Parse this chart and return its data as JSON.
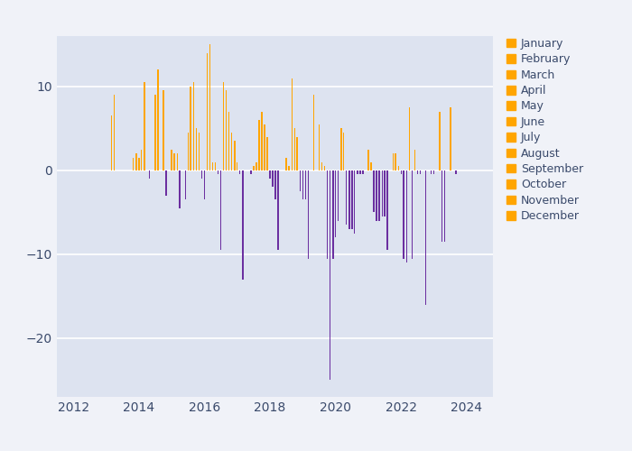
{
  "fig_background": "#f0f2f8",
  "plot_background": "#dde3f0",
  "bar_width": 0.04,
  "xlim": [
    2011.5,
    2024.8
  ],
  "ylim": [
    -27,
    16
  ],
  "yticks": [
    -20,
    -10,
    0,
    10
  ],
  "xticks": [
    2012,
    2014,
    2016,
    2018,
    2020,
    2022,
    2024
  ],
  "orange_color": "#FFA500",
  "purple_color": "#6B2FA0",
  "months": [
    "January",
    "February",
    "March",
    "April",
    "May",
    "June",
    "July",
    "August",
    "September",
    "October",
    "November",
    "December"
  ],
  "data": [
    {
      "x": 2013.17,
      "value": 6.5,
      "color": "orange"
    },
    {
      "x": 2013.25,
      "value": 9.0,
      "color": "orange"
    },
    {
      "x": 2013.83,
      "value": 1.5,
      "color": "orange"
    },
    {
      "x": 2013.92,
      "value": 2.0,
      "color": "orange"
    },
    {
      "x": 2014.0,
      "value": 1.5,
      "color": "orange"
    },
    {
      "x": 2014.08,
      "value": 2.5,
      "color": "orange"
    },
    {
      "x": 2014.17,
      "value": 10.5,
      "color": "orange"
    },
    {
      "x": 2014.33,
      "value": -1.0,
      "color": "purple"
    },
    {
      "x": 2014.5,
      "value": 9.0,
      "color": "orange"
    },
    {
      "x": 2014.58,
      "value": 12.0,
      "color": "orange"
    },
    {
      "x": 2014.75,
      "value": 9.5,
      "color": "orange"
    },
    {
      "x": 2014.83,
      "value": -3.0,
      "color": "purple"
    },
    {
      "x": 2015.0,
      "value": 2.5,
      "color": "orange"
    },
    {
      "x": 2015.08,
      "value": 2.0,
      "color": "orange"
    },
    {
      "x": 2015.17,
      "value": 2.0,
      "color": "orange"
    },
    {
      "x": 2015.25,
      "value": -4.5,
      "color": "purple"
    },
    {
      "x": 2015.42,
      "value": -3.5,
      "color": "purple"
    },
    {
      "x": 2015.5,
      "value": 4.5,
      "color": "orange"
    },
    {
      "x": 2015.58,
      "value": 10.0,
      "color": "orange"
    },
    {
      "x": 2015.67,
      "value": 10.5,
      "color": "orange"
    },
    {
      "x": 2015.75,
      "value": 5.0,
      "color": "orange"
    },
    {
      "x": 2015.83,
      "value": 4.5,
      "color": "orange"
    },
    {
      "x": 2015.92,
      "value": -1.0,
      "color": "purple"
    },
    {
      "x": 2016.0,
      "value": -3.5,
      "color": "purple"
    },
    {
      "x": 2016.08,
      "value": 14.0,
      "color": "orange"
    },
    {
      "x": 2016.17,
      "value": 15.0,
      "color": "orange"
    },
    {
      "x": 2016.25,
      "value": 1.0,
      "color": "orange"
    },
    {
      "x": 2016.33,
      "value": 1.0,
      "color": "orange"
    },
    {
      "x": 2016.42,
      "value": -0.5,
      "color": "purple"
    },
    {
      "x": 2016.5,
      "value": -9.5,
      "color": "purple"
    },
    {
      "x": 2016.58,
      "value": 10.5,
      "color": "orange"
    },
    {
      "x": 2016.67,
      "value": 9.5,
      "color": "orange"
    },
    {
      "x": 2016.75,
      "value": 7.0,
      "color": "orange"
    },
    {
      "x": 2016.83,
      "value": 4.5,
      "color": "orange"
    },
    {
      "x": 2016.92,
      "value": 3.5,
      "color": "orange"
    },
    {
      "x": 2017.0,
      "value": 1.0,
      "color": "orange"
    },
    {
      "x": 2017.08,
      "value": -0.5,
      "color": "purple"
    },
    {
      "x": 2017.17,
      "value": -13.0,
      "color": "purple"
    },
    {
      "x": 2017.42,
      "value": -0.5,
      "color": "purple"
    },
    {
      "x": 2017.5,
      "value": 0.5,
      "color": "orange"
    },
    {
      "x": 2017.58,
      "value": 1.0,
      "color": "orange"
    },
    {
      "x": 2017.67,
      "value": 6.0,
      "color": "orange"
    },
    {
      "x": 2017.75,
      "value": 7.0,
      "color": "orange"
    },
    {
      "x": 2017.83,
      "value": 5.5,
      "color": "orange"
    },
    {
      "x": 2017.92,
      "value": 4.0,
      "color": "orange"
    },
    {
      "x": 2018.0,
      "value": -1.0,
      "color": "purple"
    },
    {
      "x": 2018.08,
      "value": -2.0,
      "color": "purple"
    },
    {
      "x": 2018.17,
      "value": -3.5,
      "color": "purple"
    },
    {
      "x": 2018.25,
      "value": -9.5,
      "color": "purple"
    },
    {
      "x": 2018.5,
      "value": 1.5,
      "color": "orange"
    },
    {
      "x": 2018.58,
      "value": 0.5,
      "color": "orange"
    },
    {
      "x": 2018.67,
      "value": 11.0,
      "color": "orange"
    },
    {
      "x": 2018.75,
      "value": 5.0,
      "color": "orange"
    },
    {
      "x": 2018.83,
      "value": 4.0,
      "color": "orange"
    },
    {
      "x": 2018.92,
      "value": -2.5,
      "color": "purple"
    },
    {
      "x": 2019.0,
      "value": -3.5,
      "color": "purple"
    },
    {
      "x": 2019.08,
      "value": -3.5,
      "color": "purple"
    },
    {
      "x": 2019.17,
      "value": -10.5,
      "color": "purple"
    },
    {
      "x": 2019.33,
      "value": 9.0,
      "color": "orange"
    },
    {
      "x": 2019.5,
      "value": 5.5,
      "color": "orange"
    },
    {
      "x": 2019.58,
      "value": 1.0,
      "color": "orange"
    },
    {
      "x": 2019.67,
      "value": 0.5,
      "color": "orange"
    },
    {
      "x": 2019.75,
      "value": -10.5,
      "color": "purple"
    },
    {
      "x": 2019.83,
      "value": -25.0,
      "color": "purple"
    },
    {
      "x": 2019.92,
      "value": -10.5,
      "color": "purple"
    },
    {
      "x": 2020.0,
      "value": -8.0,
      "color": "purple"
    },
    {
      "x": 2020.08,
      "value": -6.0,
      "color": "purple"
    },
    {
      "x": 2020.17,
      "value": 5.0,
      "color": "orange"
    },
    {
      "x": 2020.25,
      "value": 4.5,
      "color": "orange"
    },
    {
      "x": 2020.33,
      "value": -6.5,
      "color": "purple"
    },
    {
      "x": 2020.42,
      "value": -7.0,
      "color": "purple"
    },
    {
      "x": 2020.5,
      "value": -7.0,
      "color": "purple"
    },
    {
      "x": 2020.58,
      "value": -7.5,
      "color": "purple"
    },
    {
      "x": 2020.67,
      "value": -0.5,
      "color": "purple"
    },
    {
      "x": 2020.75,
      "value": -0.5,
      "color": "purple"
    },
    {
      "x": 2020.83,
      "value": -0.5,
      "color": "purple"
    },
    {
      "x": 2021.0,
      "value": 2.5,
      "color": "orange"
    },
    {
      "x": 2021.08,
      "value": 1.0,
      "color": "orange"
    },
    {
      "x": 2021.17,
      "value": -5.0,
      "color": "purple"
    },
    {
      "x": 2021.25,
      "value": -6.0,
      "color": "purple"
    },
    {
      "x": 2021.33,
      "value": -6.0,
      "color": "purple"
    },
    {
      "x": 2021.42,
      "value": -5.5,
      "color": "purple"
    },
    {
      "x": 2021.5,
      "value": -5.5,
      "color": "purple"
    },
    {
      "x": 2021.58,
      "value": -9.5,
      "color": "purple"
    },
    {
      "x": 2021.75,
      "value": 2.0,
      "color": "orange"
    },
    {
      "x": 2021.83,
      "value": 2.0,
      "color": "orange"
    },
    {
      "x": 2021.92,
      "value": 0.5,
      "color": "orange"
    },
    {
      "x": 2022.0,
      "value": -0.5,
      "color": "purple"
    },
    {
      "x": 2022.08,
      "value": -10.5,
      "color": "purple"
    },
    {
      "x": 2022.17,
      "value": -11.0,
      "color": "purple"
    },
    {
      "x": 2022.25,
      "value": 7.5,
      "color": "orange"
    },
    {
      "x": 2022.33,
      "value": -10.5,
      "color": "purple"
    },
    {
      "x": 2022.42,
      "value": 2.5,
      "color": "orange"
    },
    {
      "x": 2022.5,
      "value": -0.5,
      "color": "purple"
    },
    {
      "x": 2022.58,
      "value": -0.5,
      "color": "purple"
    },
    {
      "x": 2022.75,
      "value": -16.0,
      "color": "purple"
    },
    {
      "x": 2022.92,
      "value": -0.5,
      "color": "purple"
    },
    {
      "x": 2023.0,
      "value": -0.5,
      "color": "purple"
    },
    {
      "x": 2023.17,
      "value": 7.0,
      "color": "orange"
    },
    {
      "x": 2023.25,
      "value": -8.5,
      "color": "purple"
    },
    {
      "x": 2023.33,
      "value": -8.5,
      "color": "purple"
    },
    {
      "x": 2023.5,
      "value": 7.5,
      "color": "orange"
    },
    {
      "x": 2023.67,
      "value": -0.5,
      "color": "purple"
    }
  ]
}
